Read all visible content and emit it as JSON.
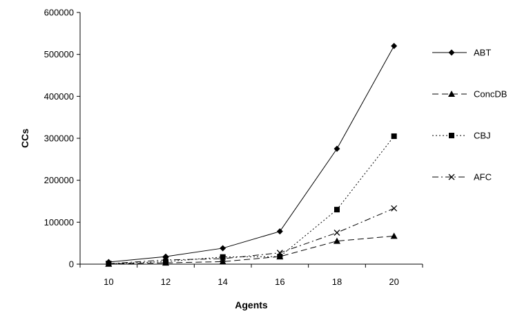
{
  "chart_data": {
    "type": "line",
    "title": "",
    "xlabel": "Agents",
    "ylabel": "CCs",
    "x": [
      10,
      12,
      14,
      16,
      18,
      20
    ],
    "x_tick_labels": [
      "10",
      "12",
      "14",
      "16",
      "18",
      "20"
    ],
    "y_ticks": [
      0,
      100000,
      200000,
      300000,
      400000,
      500000,
      600000
    ],
    "y_tick_labels": [
      "0",
      "100000",
      "200000",
      "300000",
      "400000",
      "500000",
      "600000"
    ],
    "ylim": [
      0,
      600000
    ],
    "grid": false,
    "legend_position": "right",
    "series": [
      {
        "name": "ABT",
        "values": [
          5000,
          18000,
          38000,
          78000,
          275000,
          520000
        ],
        "marker": "diamond",
        "dash": "solid",
        "color": "#000000"
      },
      {
        "name": "ConcDB",
        "values": [
          500,
          3000,
          6000,
          18000,
          55000,
          67000
        ],
        "marker": "triangle",
        "dash": "long-dash",
        "color": "#000000"
      },
      {
        "name": "CBJ",
        "values": [
          1000,
          6000,
          17000,
          18000,
          130000,
          305000
        ],
        "marker": "square",
        "dash": "dotted",
        "color": "#000000"
      },
      {
        "name": "AFC",
        "values": [
          1000,
          10000,
          13000,
          27000,
          75000,
          133000
        ],
        "marker": "x",
        "dash": "dash-dot",
        "color": "#000000"
      }
    ]
  }
}
